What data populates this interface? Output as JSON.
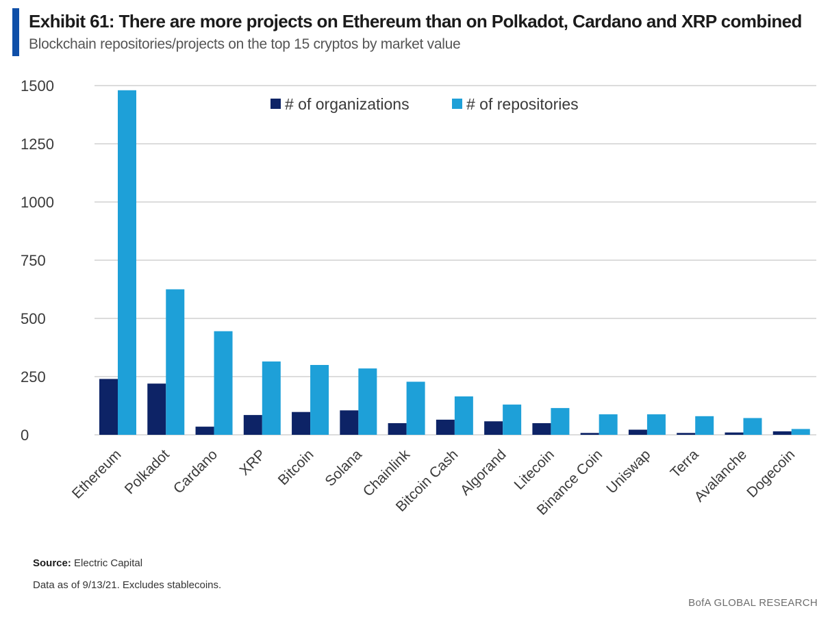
{
  "header": {
    "title": "Exhibit 61: There are more projects on Ethereum than on Polkadot, Cardano and XRP combined",
    "subtitle": "Blockchain repositories/projects on the top 15 cryptos by market value"
  },
  "footer": {
    "source_label": "Source:",
    "source_value": "Electric Capital",
    "note": "Data as of 9/13/21. Excludes stablecoins.",
    "brand": "BofA GLOBAL RESEARCH"
  },
  "colors": {
    "accent": "#0f4fa8",
    "organizations": "#0d2366",
    "repositories": "#1ea0d8",
    "grid": "#c8c8c8",
    "axis_text": "#3a3a3a"
  },
  "chart_data": {
    "type": "bar",
    "categories": [
      "Ethereum",
      "Polkadot",
      "Cardano",
      "XRP",
      "Bitcoin",
      "Solana",
      "Chainlink",
      "Bitcoin Cash",
      "Algorand",
      "Litecoin",
      "Binance Coin",
      "Uniswap",
      "Terra",
      "Avalanche",
      "Dogecoin"
    ],
    "series": [
      {
        "name": "# of organizations",
        "values": [
          240,
          220,
          35,
          85,
          98,
          105,
          50,
          65,
          58,
          50,
          8,
          22,
          8,
          10,
          15
        ]
      },
      {
        "name": "# of repositories",
        "values": [
          1480,
          625,
          445,
          315,
          300,
          285,
          228,
          165,
          130,
          115,
          88,
          88,
          80,
          72,
          25
        ]
      }
    ],
    "yticks": [
      "0",
      "250",
      "500",
      "750",
      "1000",
      "1250",
      "1500"
    ],
    "ylim": [
      0,
      1500
    ],
    "grid": true,
    "legend_position": "top-center"
  }
}
